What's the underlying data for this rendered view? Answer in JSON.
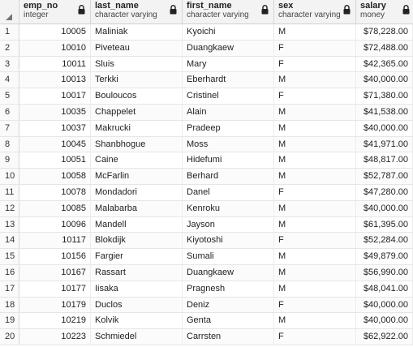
{
  "columns": [
    {
      "name": "emp_no",
      "type": "integer"
    },
    {
      "name": "last_name",
      "type": "character varying"
    },
    {
      "name": "first_name",
      "type": "character varying"
    },
    {
      "name": "sex",
      "type": "character varying"
    },
    {
      "name": "salary",
      "type": "money"
    }
  ],
  "rows": [
    {
      "n": "1",
      "emp_no": "10005",
      "last_name": "Maliniak",
      "first_name": "Kyoichi",
      "sex": "M",
      "salary": "$78,228.00"
    },
    {
      "n": "2",
      "emp_no": "10010",
      "last_name": "Piveteau",
      "first_name": "Duangkaew",
      "sex": "F",
      "salary": "$72,488.00"
    },
    {
      "n": "3",
      "emp_no": "10011",
      "last_name": "Sluis",
      "first_name": "Mary",
      "sex": "F",
      "salary": "$42,365.00"
    },
    {
      "n": "4",
      "emp_no": "10013",
      "last_name": "Terkki",
      "first_name": "Eberhardt",
      "sex": "M",
      "salary": "$40,000.00"
    },
    {
      "n": "5",
      "emp_no": "10017",
      "last_name": "Bouloucos",
      "first_name": "Cristinel",
      "sex": "F",
      "salary": "$71,380.00"
    },
    {
      "n": "6",
      "emp_no": "10035",
      "last_name": "Chappelet",
      "first_name": "Alain",
      "sex": "M",
      "salary": "$41,538.00"
    },
    {
      "n": "7",
      "emp_no": "10037",
      "last_name": "Makrucki",
      "first_name": "Pradeep",
      "sex": "M",
      "salary": "$40,000.00"
    },
    {
      "n": "8",
      "emp_no": "10045",
      "last_name": "Shanbhogue",
      "first_name": "Moss",
      "sex": "M",
      "salary": "$41,971.00"
    },
    {
      "n": "9",
      "emp_no": "10051",
      "last_name": "Caine",
      "first_name": "Hidefumi",
      "sex": "M",
      "salary": "$48,817.00"
    },
    {
      "n": "10",
      "emp_no": "10058",
      "last_name": "McFarlin",
      "first_name": "Berhard",
      "sex": "M",
      "salary": "$52,787.00"
    },
    {
      "n": "11",
      "emp_no": "10078",
      "last_name": "Mondadori",
      "first_name": "Danel",
      "sex": "F",
      "salary": "$47,280.00"
    },
    {
      "n": "12",
      "emp_no": "10085",
      "last_name": "Malabarba",
      "first_name": "Kenroku",
      "sex": "M",
      "salary": "$40,000.00"
    },
    {
      "n": "13",
      "emp_no": "10096",
      "last_name": "Mandell",
      "first_name": "Jayson",
      "sex": "M",
      "salary": "$61,395.00"
    },
    {
      "n": "14",
      "emp_no": "10117",
      "last_name": "Blokdijk",
      "first_name": "Kiyotoshi",
      "sex": "F",
      "salary": "$52,284.00"
    },
    {
      "n": "15",
      "emp_no": "10156",
      "last_name": "Fargier",
      "first_name": "Sumali",
      "sex": "M",
      "salary": "$49,879.00"
    },
    {
      "n": "16",
      "emp_no": "10167",
      "last_name": "Rassart",
      "first_name": "Duangkaew",
      "sex": "M",
      "salary": "$56,990.00"
    },
    {
      "n": "17",
      "emp_no": "10177",
      "last_name": "Iisaka",
      "first_name": "Pragnesh",
      "sex": "M",
      "salary": "$48,041.00"
    },
    {
      "n": "18",
      "emp_no": "10179",
      "last_name": "Duclos",
      "first_name": "Deniz",
      "sex": "F",
      "salary": "$40,000.00"
    },
    {
      "n": "19",
      "emp_no": "10219",
      "last_name": "Kolvik",
      "first_name": "Genta",
      "sex": "M",
      "salary": "$40,000.00"
    },
    {
      "n": "20",
      "emp_no": "10223",
      "last_name": "Schmiedel",
      "first_name": "Carrsten",
      "sex": "F",
      "salary": "$62,922.00"
    }
  ],
  "icons": {
    "lock": "lock-icon",
    "corner": "sort-corner-icon"
  }
}
